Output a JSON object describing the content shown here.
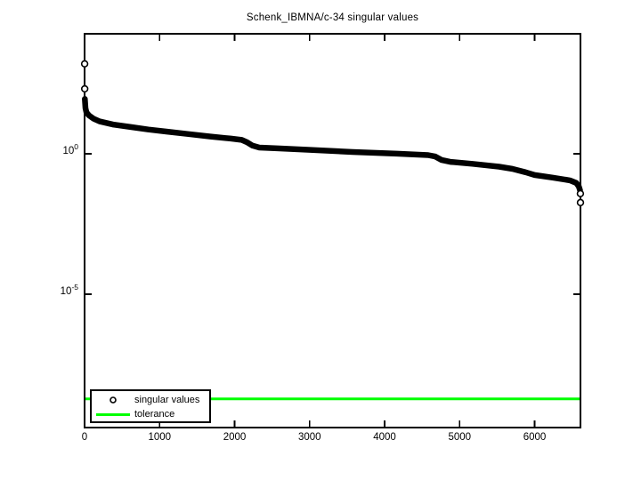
{
  "chart_data": {
    "type": "scatter",
    "title": "Schenk_IBMNA/c-34 singular values",
    "xlabel": "",
    "ylabel": "",
    "x_axis": {
      "xlim": [
        0,
        6611
      ],
      "xticks": [
        0,
        1000,
        2000,
        3000,
        4000,
        5000,
        6000
      ]
    },
    "y_axis": {
      "scale": "log",
      "ylim_log10": [
        -9.75,
        4.27
      ],
      "yticks": [
        {
          "log10": 0,
          "base": "10",
          "exp": "0"
        },
        {
          "log10": -5,
          "base": "10",
          "exp": "-5"
        }
      ]
    },
    "grid": false,
    "legend": {
      "position": "southwest",
      "items": [
        "singular values",
        "tolerance"
      ]
    },
    "series": [
      {
        "name": "singular values",
        "style": "markers",
        "marker": "circle",
        "color": "#000000",
        "band_points_log10": [
          [
            3,
            1.95
          ],
          [
            12,
            1.62
          ],
          [
            25,
            1.47
          ],
          [
            59,
            1.36
          ],
          [
            118,
            1.25
          ],
          [
            200,
            1.15
          ],
          [
            380,
            1.04
          ],
          [
            615,
            0.95
          ],
          [
            850,
            0.86
          ],
          [
            1090,
            0.79
          ],
          [
            1385,
            0.7
          ],
          [
            1680,
            0.61
          ],
          [
            1950,
            0.54
          ],
          [
            2095,
            0.49
          ],
          [
            2165,
            0.41
          ],
          [
            2237,
            0.29
          ],
          [
            2330,
            0.22
          ],
          [
            2570,
            0.19
          ],
          [
            2980,
            0.14
          ],
          [
            3575,
            0.06
          ],
          [
            4165,
            0.0
          ],
          [
            4580,
            -0.05
          ],
          [
            4675,
            -0.1
          ],
          [
            4757,
            -0.22
          ],
          [
            4876,
            -0.29
          ],
          [
            5170,
            -0.36
          ],
          [
            5525,
            -0.46
          ],
          [
            5705,
            -0.54
          ],
          [
            5880,
            -0.66
          ],
          [
            6000,
            -0.76
          ],
          [
            6240,
            -0.85
          ],
          [
            6470,
            -0.95
          ],
          [
            6555,
            -1.04
          ],
          [
            6590,
            -1.17
          ],
          [
            6605,
            -1.3
          ]
        ],
        "isolated_points_log10": [
          [
            1,
            3.2
          ],
          [
            2,
            2.31
          ],
          [
            6610,
            -1.42
          ],
          [
            6611,
            -1.74
          ]
        ]
      },
      {
        "name": "tolerance",
        "style": "line",
        "color": "#00ff00",
        "value_log10": -8.73
      }
    ]
  }
}
